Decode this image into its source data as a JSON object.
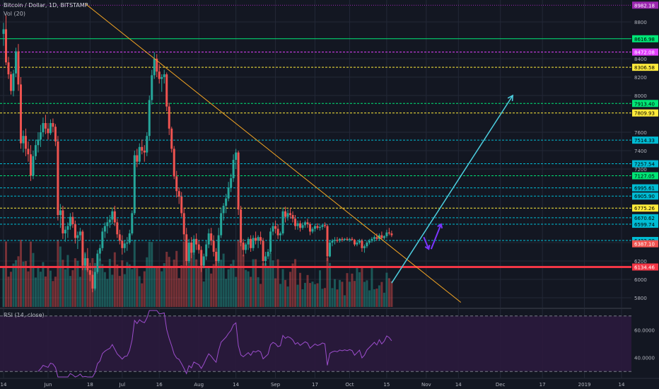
{
  "header": {
    "symbol": "Bitcoin / Dollar, 1D, BITSTAMP",
    "volume": "Vol (20)",
    "rsi": "RSI (14, close)"
  },
  "colors": {
    "background": "#131722",
    "up": "#26a69a",
    "down": "#ef5350",
    "grid": "#232837",
    "text": "#b2b5be"
  },
  "chart_data": {
    "type": "candlestick",
    "title": "Bitcoin / Dollar, 1D, BITSTAMP",
    "xlabel": "",
    "ylabel": "",
    "price_ylim": [
      5700,
      9000
    ],
    "price_ticks": [
      5800,
      6000,
      6200,
      6400,
      7200,
      7400,
      7600,
      8000,
      8200,
      8400,
      8800
    ],
    "x_ticks": [
      "14",
      "Jun",
      "18",
      "Jul",
      "16",
      "Aug",
      "14",
      "Sep",
      "17",
      "Oct",
      "15",
      "Nov",
      "14",
      "Dec",
      "17",
      "2019",
      "14"
    ],
    "x_tick_days": [
      0,
      18,
      35,
      48,
      63,
      79,
      94,
      110,
      126,
      140,
      155,
      171,
      184,
      201,
      218,
      235,
      250
    ],
    "date_range": [
      "2018-05-14",
      "2019-01-19"
    ],
    "grid": true,
    "price_levels": [
      {
        "value": 8982.18,
        "label": "8982.18",
        "color": "#9c27b0",
        "style": "dotted"
      },
      {
        "value": 8616.98,
        "label": "8616.98",
        "color": "#00e676",
        "style": "solid"
      },
      {
        "value": 8472.08,
        "label": "8472.08",
        "color": "#e040fb",
        "style": "dashed"
      },
      {
        "value": 8306.58,
        "label": "8306.58",
        "color": "#ffeb3b",
        "style": "dashed"
      },
      {
        "value": 7913.4,
        "label": "7913.40",
        "color": "#00e676",
        "style": "dashed"
      },
      {
        "value": 7809.93,
        "label": "7809.93",
        "color": "#ffeb3b",
        "style": "dashed"
      },
      {
        "value": 7514.33,
        "label": "7514.33",
        "color": "#00bcd4",
        "style": "dashed"
      },
      {
        "value": 7257.54,
        "label": "7257.54",
        "color": "#00bcd4",
        "style": "dashed"
      },
      {
        "value": 7127.05,
        "label": "7127.05",
        "color": "#00e676",
        "style": "dashed"
      },
      {
        "value": 6995.61,
        "label": "6995.61",
        "color": "#00bcd4",
        "style": "dashed"
      },
      {
        "value": 6905.9,
        "label": "6905.90",
        "color": "#00bcd4",
        "style": "dashed"
      },
      {
        "value": 6775.26,
        "label": "6775.26",
        "color": "#ffeb3b",
        "style": "dashed"
      },
      {
        "value": 6670.62,
        "label": "6670.62",
        "color": "#00bcd4",
        "style": "dashed"
      },
      {
        "value": 6599.74,
        "label": "6599.74",
        "color": "#00bcd4",
        "style": "dashed"
      },
      {
        "value": 6422.9,
        "label": "6422.90",
        "color": "#00bcd4",
        "style": "dashed"
      },
      {
        "value": 6387.1,
        "label": "6387.10",
        "color": "#ef5350",
        "style": "none"
      },
      {
        "value": 6134.46,
        "label": "6134.46",
        "color": "#f23645",
        "style": "thick"
      }
    ],
    "trendlines": [
      {
        "name": "descending",
        "color": "#f5a623",
        "from": [
          33,
          9000
        ],
        "to": [
          185,
          5750
        ]
      },
      {
        "name": "ascending",
        "color": "#4dd0e1",
        "from": [
          157,
          5960
        ],
        "to": [
          206,
          8000
        ]
      }
    ],
    "arrows": [
      {
        "color": "#7b35ff",
        "points": [
          [
            170,
            6460
          ],
          [
            172,
            6330
          ]
        ]
      },
      {
        "color": "#7b35ff",
        "points": [
          [
            173,
            6330
          ],
          [
            177,
            6600
          ]
        ]
      }
    ],
    "candles": [
      [
        8670,
        8790,
        8540,
        8720
      ],
      [
        8720,
        8870,
        8330,
        8360
      ],
      [
        8360,
        8420,
        8180,
        8230
      ],
      [
        8230,
        8260,
        8010,
        8050
      ],
      [
        8050,
        8280,
        7990,
        8240
      ],
      [
        8240,
        8520,
        8200,
        8480
      ],
      [
        8480,
        8560,
        8050,
        8120
      ],
      [
        8120,
        8200,
        7420,
        7480
      ],
      [
        7480,
        7620,
        7380,
        7560
      ],
      [
        7560,
        7640,
        7340,
        7420
      ],
      [
        7420,
        7500,
        7280,
        7360
      ],
      [
        7360,
        7460,
        7070,
        7130
      ],
      [
        7130,
        7400,
        7090,
        7340
      ],
      [
        7340,
        7520,
        7300,
        7460
      ],
      [
        7460,
        7600,
        7380,
        7520
      ],
      [
        7520,
        7680,
        7440,
        7600
      ],
      [
        7600,
        7760,
        7550,
        7700
      ],
      [
        7700,
        7790,
        7580,
        7640
      ],
      [
        7640,
        7700,
        7520,
        7590
      ],
      [
        7590,
        7740,
        7570,
        7700
      ],
      [
        7700,
        7750,
        7600,
        7660
      ],
      [
        7660,
        7690,
        7450,
        7500
      ],
      [
        7500,
        7560,
        6640,
        6700
      ],
      [
        6700,
        6820,
        6560,
        6750
      ],
      [
        6750,
        6800,
        6440,
        6500
      ],
      [
        6500,
        6580,
        6410,
        6540
      ],
      [
        6540,
        6620,
        6450,
        6580
      ],
      [
        6580,
        6720,
        6540,
        6680
      ],
      [
        6680,
        6730,
        6560,
        6600
      ],
      [
        6600,
        6640,
        6390,
        6450
      ],
      [
        6450,
        6520,
        6330,
        6480
      ],
      [
        6480,
        6560,
        6420,
        6520
      ],
      [
        6520,
        6540,
        6100,
        6150
      ],
      [
        6150,
        6280,
        6100,
        6230
      ],
      [
        6230,
        6340,
        6080,
        6100
      ],
      [
        6100,
        6180,
        5980,
        6050
      ],
      [
        6050,
        6090,
        5860,
        5900
      ],
      [
        5900,
        6130,
        5880,
        6080
      ],
      [
        6080,
        6320,
        6060,
        6280
      ],
      [
        6280,
        6380,
        6200,
        6340
      ],
      [
        6340,
        6560,
        6310,
        6520
      ],
      [
        6520,
        6620,
        6450,
        6580
      ],
      [
        6580,
        6680,
        6500,
        6620
      ],
      [
        6620,
        6700,
        6560,
        6650
      ],
      [
        6650,
        6780,
        6600,
        6740
      ],
      [
        6740,
        6800,
        6580,
        6620
      ],
      [
        6620,
        6660,
        6450,
        6490
      ],
      [
        6490,
        6540,
        6380,
        6420
      ],
      [
        6420,
        6480,
        6270,
        6340
      ],
      [
        6340,
        6420,
        6290,
        6390
      ],
      [
        6390,
        6460,
        6310,
        6400
      ],
      [
        6400,
        6540,
        6380,
        6500
      ],
      [
        6500,
        6750,
        6480,
        6720
      ],
      [
        6720,
        7400,
        6700,
        7350
      ],
      [
        7350,
        7420,
        7220,
        7280
      ],
      [
        7280,
        7480,
        7250,
        7440
      ],
      [
        7440,
        7520,
        7360,
        7400
      ],
      [
        7400,
        7460,
        7280,
        7380
      ],
      [
        7380,
        7600,
        7340,
        7560
      ],
      [
        7560,
        8000,
        7520,
        7950
      ],
      [
        7950,
        8280,
        7900,
        8220
      ],
      [
        8220,
        8470,
        8180,
        8400
      ],
      [
        8400,
        8450,
        8200,
        8260
      ],
      [
        8260,
        8340,
        8130,
        8180
      ],
      [
        8180,
        8230,
        8040,
        8200
      ],
      [
        8200,
        8280,
        8130,
        8230
      ],
      [
        8230,
        8250,
        7830,
        7880
      ],
      [
        7880,
        7920,
        7570,
        7640
      ],
      [
        7640,
        7660,
        7380,
        7420
      ],
      [
        7420,
        7450,
        7090,
        7120
      ],
      [
        7120,
        7180,
        6890,
        6960
      ],
      [
        6960,
        7000,
        6820,
        6900
      ],
      [
        6900,
        6950,
        6680,
        6720
      ],
      [
        6720,
        6780,
        6420,
        6490
      ],
      [
        6490,
        6560,
        6150,
        6200
      ],
      [
        6200,
        6440,
        6180,
        6400
      ],
      [
        6400,
        6460,
        6230,
        6290
      ],
      [
        6290,
        6480,
        6270,
        6440
      ],
      [
        6440,
        6500,
        6320,
        6380
      ],
      [
        6380,
        6420,
        6280,
        6320
      ],
      [
        6320,
        6360,
        6080,
        6150
      ],
      [
        6150,
        6280,
        6120,
        6250
      ],
      [
        6250,
        6420,
        6210,
        6380
      ],
      [
        6380,
        6550,
        6340,
        6500
      ],
      [
        6500,
        6560,
        6370,
        6420
      ],
      [
        6420,
        6480,
        6250,
        6300
      ],
      [
        6300,
        6340,
        6140,
        6200
      ],
      [
        6200,
        6560,
        6180,
        6480
      ],
      [
        6480,
        6780,
        6450,
        6720
      ],
      [
        6720,
        6830,
        6640,
        6800
      ],
      [
        6800,
        6930,
        6720,
        6880
      ],
      [
        6880,
        7060,
        6850,
        7000
      ],
      [
        7000,
        7150,
        6950,
        7100
      ],
      [
        7100,
        7360,
        7060,
        7300
      ],
      [
        7300,
        7420,
        7200,
        7380
      ],
      [
        7380,
        7400,
        6700,
        6760
      ],
      [
        6760,
        6800,
        6360,
        6400
      ],
      [
        6400,
        6440,
        6250,
        6320
      ],
      [
        6320,
        6400,
        6280,
        6380
      ],
      [
        6380,
        6460,
        6320,
        6440
      ],
      [
        6440,
        6480,
        6300,
        6340
      ],
      [
        6340,
        6480,
        6310,
        6450
      ],
      [
        6450,
        6520,
        6380,
        6420
      ],
      [
        6420,
        6480,
        6340,
        6460
      ],
      [
        6460,
        6520,
        6380,
        6420
      ],
      [
        6420,
        6450,
        6150,
        6200
      ],
      [
        6200,
        6300,
        6150,
        6250
      ],
      [
        6250,
        6330,
        6220,
        6300
      ],
      [
        6300,
        6560,
        6280,
        6520
      ],
      [
        6520,
        6620,
        6480,
        6580
      ],
      [
        6580,
        6640,
        6500,
        6550
      ],
      [
        6550,
        6600,
        6440,
        6480
      ],
      [
        6480,
        6520,
        6420,
        6500
      ],
      [
        6500,
        6780,
        6480,
        6740
      ],
      [
        6740,
        6790,
        6620,
        6680
      ],
      [
        6680,
        6760,
        6640,
        6720
      ],
      [
        6720,
        6780,
        6660,
        6700
      ],
      [
        6700,
        6740,
        6620,
        6660
      ],
      [
        6660,
        6700,
        6540,
        6580
      ],
      [
        6580,
        6640,
        6540,
        6610
      ],
      [
        6610,
        6640,
        6520,
        6560
      ],
      [
        6560,
        6620,
        6540,
        6590
      ],
      [
        6590,
        6640,
        6560,
        6620
      ],
      [
        6620,
        6660,
        6560,
        6600
      ],
      [
        6600,
        6620,
        6480,
        6520
      ],
      [
        6520,
        6570,
        6500,
        6550
      ],
      [
        6550,
        6600,
        6520,
        6580
      ],
      [
        6580,
        6610,
        6540,
        6560
      ],
      [
        6560,
        6590,
        6530,
        6570
      ],
      [
        6570,
        6600,
        6540,
        6590
      ],
      [
        6590,
        6620,
        6560,
        6580
      ],
      [
        6580,
        6600,
        6200,
        6250
      ],
      [
        6250,
        6420,
        6240,
        6400
      ],
      [
        6400,
        6440,
        6360,
        6420
      ],
      [
        6420,
        6460,
        6380,
        6430
      ],
      [
        6430,
        6460,
        6400,
        6420
      ],
      [
        6420,
        6450,
        6400,
        6440
      ],
      [
        6440,
        6460,
        6410,
        6430
      ],
      [
        6430,
        6450,
        6420,
        6440
      ],
      [
        6440,
        6460,
        6420,
        6430
      ],
      [
        6430,
        6450,
        6410,
        6440
      ],
      [
        6440,
        6460,
        6420,
        6430
      ],
      [
        6430,
        6440,
        6360,
        6380
      ],
      [
        6380,
        6420,
        6360,
        6400
      ],
      [
        6400,
        6440,
        6380,
        6420
      ],
      [
        6420,
        6440,
        6300,
        6340
      ],
      [
        6340,
        6380,
        6290,
        6360
      ],
      [
        6360,
        6420,
        6340,
        6400
      ],
      [
        6400,
        6440,
        6380,
        6420
      ],
      [
        6420,
        6460,
        6400,
        6440
      ],
      [
        6440,
        6480,
        6410,
        6460
      ],
      [
        6460,
        6500,
        6420,
        6440
      ],
      [
        6440,
        6500,
        6420,
        6480
      ],
      [
        6480,
        6520,
        6440,
        6450
      ],
      [
        6450,
        6480,
        6430,
        6470
      ],
      [
        6470,
        6540,
        6450,
        6510
      ],
      [
        6510,
        6560,
        6480,
        6500
      ],
      [
        6500,
        6530,
        6460,
        6480
      ]
    ],
    "volume_max": 100000,
    "rsi_ylim": [
      30,
      70
    ],
    "rsi_ticks": [
      40,
      60
    ],
    "rsi_bands": [
      30,
      70
    ]
  }
}
